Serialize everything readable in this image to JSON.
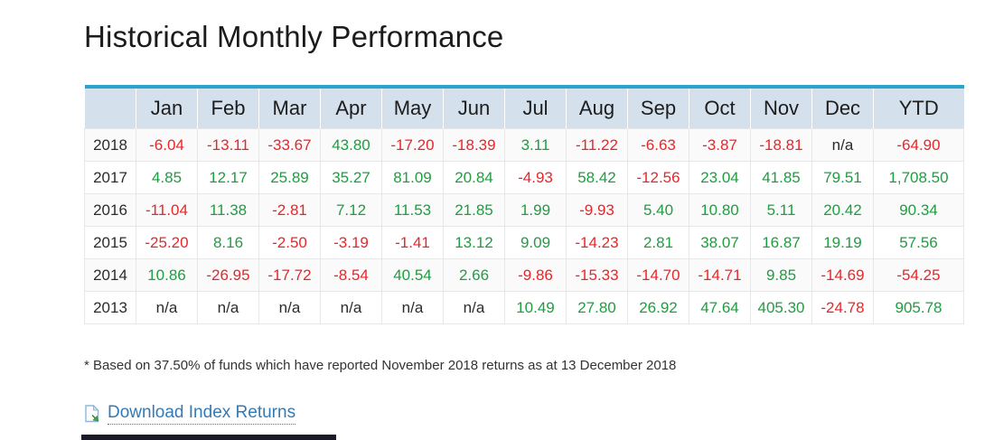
{
  "page": {
    "title": "Historical Monthly Performance"
  },
  "table": {
    "columns": [
      "",
      "Jan",
      "Feb",
      "Mar",
      "Apr",
      "May",
      "Jun",
      "Jul",
      "Aug",
      "Sep",
      "Oct",
      "Nov",
      "Dec",
      "YTD"
    ],
    "rows": [
      {
        "year": "2018",
        "values": [
          "-6.04",
          "-13.11",
          "-33.67",
          "43.80",
          "-17.20",
          "-18.39",
          "3.11",
          "-11.22",
          "-6.63",
          "-3.87",
          "-18.81",
          "n/a",
          "-64.90"
        ]
      },
      {
        "year": "2017",
        "values": [
          "4.85",
          "12.17",
          "25.89",
          "35.27",
          "81.09",
          "20.84",
          "-4.93",
          "58.42",
          "-12.56",
          "23.04",
          "41.85",
          "79.51",
          "1,708.50"
        ]
      },
      {
        "year": "2016",
        "values": [
          "-11.04",
          "11.38",
          "-2.81",
          "7.12",
          "11.53",
          "21.85",
          "1.99",
          "-9.93",
          "5.40",
          "10.80",
          "5.11",
          "20.42",
          "90.34"
        ]
      },
      {
        "year": "2015",
        "values": [
          "-25.20",
          "8.16",
          "-2.50",
          "-3.19",
          "-1.41",
          "13.12",
          "9.09",
          "-14.23",
          "2.81",
          "38.07",
          "16.87",
          "19.19",
          "57.56"
        ]
      },
      {
        "year": "2014",
        "values": [
          "10.86",
          "-26.95",
          "-17.72",
          "-8.54",
          "40.54",
          "2.66",
          "-9.86",
          "-15.33",
          "-14.70",
          "-14.71",
          "9.85",
          "-14.69",
          "-54.25"
        ]
      },
      {
        "year": "2013",
        "values": [
          "n/a",
          "n/a",
          "n/a",
          "n/a",
          "n/a",
          "n/a",
          "10.49",
          "27.80",
          "26.92",
          "47.64",
          "405.30",
          "-24.78",
          "905.78"
        ]
      }
    ]
  },
  "footnote": "* Based on 37.50% of funds which have reported November 2018 returns as at 13 December 2018",
  "download": {
    "label": "Download Index Returns",
    "icon": "excel-download-icon"
  },
  "colors": {
    "positive": "#1f9d40",
    "negative": "#e8262a",
    "na_text": "#2b2b2b",
    "header_bg": "#d4e1ec",
    "header_top_border": "#2aa5c9",
    "link": "#337ab7"
  }
}
